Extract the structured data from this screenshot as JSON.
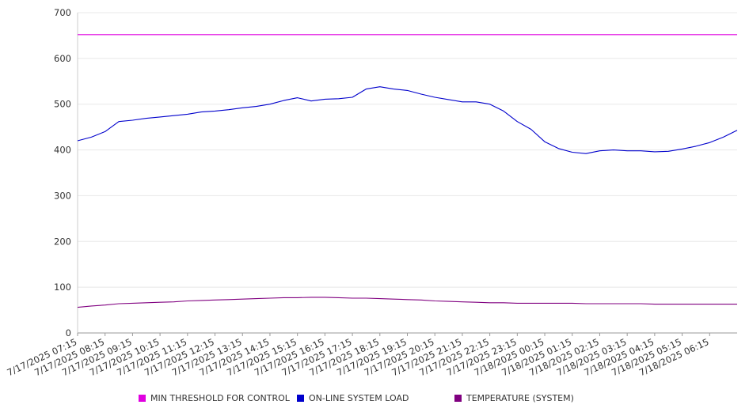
{
  "chart_data": {
    "type": "line",
    "title": "",
    "xlabel": "",
    "ylabel": "",
    "ylim": [
      0,
      700
    ],
    "yticks": [
      0,
      100,
      200,
      300,
      400,
      500,
      600,
      700
    ],
    "grid": true,
    "legend_position": "bottom",
    "x_tick_labels": [
      "7/17/2025 07:15",
      "7/17/2025 08:15",
      "7/17/2025 09:15",
      "7/17/2025 10:15",
      "7/17/2025 11:15",
      "7/17/2025 12:15",
      "7/17/2025 13:15",
      "7/17/2025 14:15",
      "7/17/2025 15:15",
      "7/17/2025 16:15",
      "7/17/2025 17:15",
      "7/17/2025 18:15",
      "7/17/2025 19:15",
      "7/17/2025 20:15",
      "7/17/2025 21:15",
      "7/17/2025 22:15",
      "7/17/2025 23:15",
      "7/18/2025 00:15",
      "7/18/2025 01:15",
      "7/18/2025 02:15",
      "7/18/2025 03:15",
      "7/18/2025 04:15",
      "7/18/2025 05:15",
      "7/18/2025 06:15"
    ],
    "x": [
      "7/17/2025 07:15",
      "7/17/2025 07:45",
      "7/17/2025 08:15",
      "7/17/2025 08:45",
      "7/17/2025 09:15",
      "7/17/2025 09:45",
      "7/17/2025 10:15",
      "7/17/2025 10:45",
      "7/17/2025 11:15",
      "7/17/2025 11:45",
      "7/17/2025 12:15",
      "7/17/2025 12:45",
      "7/17/2025 13:15",
      "7/17/2025 13:45",
      "7/17/2025 14:15",
      "7/17/2025 14:45",
      "7/17/2025 15:15",
      "7/17/2025 15:45",
      "7/17/2025 16:15",
      "7/17/2025 16:45",
      "7/17/2025 17:15",
      "7/17/2025 17:45",
      "7/17/2025 18:15",
      "7/17/2025 18:45",
      "7/17/2025 19:15",
      "7/17/2025 19:45",
      "7/17/2025 20:15",
      "7/17/2025 20:45",
      "7/17/2025 21:15",
      "7/17/2025 21:45",
      "7/17/2025 22:15",
      "7/17/2025 22:45",
      "7/17/2025 23:15",
      "7/17/2025 23:45",
      "7/18/2025 00:15",
      "7/18/2025 00:45",
      "7/18/2025 01:15",
      "7/18/2025 01:45",
      "7/18/2025 02:15",
      "7/18/2025 02:45",
      "7/18/2025 03:15",
      "7/18/2025 03:45",
      "7/18/2025 04:15",
      "7/18/2025 04:45",
      "7/18/2025 05:15",
      "7/18/2025 05:45",
      "7/18/2025 06:15",
      "7/18/2025 06:45",
      "7/18/2025 07:15"
    ],
    "series": [
      {
        "name": "MIN THRESHOLD FOR CONTROL",
        "color": "#e000e0",
        "values": [
          652,
          652,
          652,
          652,
          652,
          652,
          652,
          652,
          652,
          652,
          652,
          652,
          652,
          652,
          652,
          652,
          652,
          652,
          652,
          652,
          652,
          652,
          652,
          652,
          652,
          652,
          652,
          652,
          652,
          652,
          652,
          652,
          652,
          652,
          652,
          652,
          652,
          652,
          652,
          652,
          652,
          652,
          652,
          652,
          652,
          652,
          652,
          652,
          652
        ]
      },
      {
        "name": "ON-LINE SYSTEM LOAD",
        "color": "#0000cc",
        "values": [
          420,
          428,
          440,
          462,
          465,
          469,
          472,
          475,
          478,
          483,
          485,
          488,
          492,
          495,
          500,
          508,
          514,
          507,
          511,
          512,
          515,
          533,
          538,
          533,
          530,
          522,
          515,
          510,
          505,
          505,
          500,
          485,
          462,
          445,
          418,
          403,
          395,
          392,
          398,
          400,
          398,
          398,
          396,
          397,
          402,
          408,
          416,
          428,
          443
        ]
      },
      {
        "name": "TEMPERATURE (SYSTEM)",
        "color": "#800080",
        "values": [
          56,
          59,
          61,
          64,
          65,
          66,
          67,
          68,
          70,
          71,
          72,
          73,
          74,
          75,
          76,
          77,
          77,
          78,
          78,
          77,
          76,
          76,
          75,
          74,
          73,
          72,
          70,
          69,
          68,
          67,
          66,
          66,
          65,
          65,
          65,
          65,
          65,
          64,
          64,
          64,
          64,
          64,
          63,
          63,
          63,
          63,
          63,
          63,
          63
        ]
      }
    ]
  }
}
